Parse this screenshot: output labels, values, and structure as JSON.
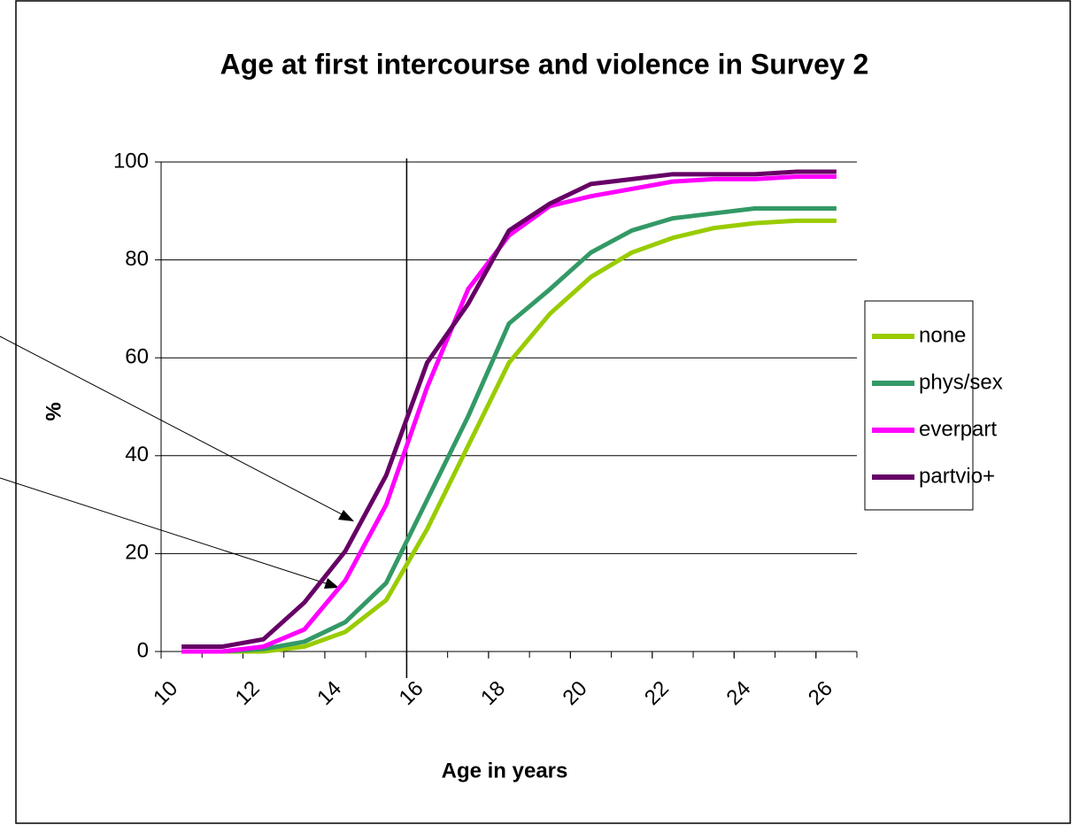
{
  "chart_data": {
    "type": "line",
    "title": "Age at first intercourse and violence in Survey 2",
    "x_label": "Age in years",
    "y_label": "%",
    "x": [
      10.5,
      11.5,
      12.5,
      13.5,
      14.5,
      15.5,
      16.5,
      17.5,
      18.5,
      19.5,
      20.5,
      21.5,
      22.5,
      23.5,
      24.5,
      25.5,
      26.5
    ],
    "series": [
      {
        "name": "none",
        "color": "#99cc00",
        "values": [
          0,
          0,
          0,
          1,
          4,
          10.5,
          25,
          42,
          59,
          69,
          76.5,
          81.5,
          84.5,
          86.5,
          87.5,
          88,
          88
        ]
      },
      {
        "name": "phys/sex",
        "color": "#339966",
        "values": [
          0,
          0,
          0.5,
          2,
          6,
          14,
          31,
          48,
          67,
          74,
          81.5,
          86,
          88.5,
          89.5,
          90.5,
          90.5,
          90.5
        ]
      },
      {
        "name": "everpart",
        "color": "#ff00ff",
        "values": [
          0,
          0,
          1,
          4.5,
          14.5,
          30,
          54,
          74,
          85,
          91,
          93,
          94.5,
          96,
          96.5,
          96.5,
          97,
          97
        ]
      },
      {
        "name": "partvio+",
        "color": "#660066",
        "values": [
          1,
          1,
          2.5,
          10,
          20.5,
          36,
          59,
          71,
          86,
          91.5,
          95.5,
          96.5,
          97.5,
          97.5,
          97.5,
          98,
          98
        ]
      }
    ],
    "xlim": [
      10,
      27
    ],
    "xticks": [
      10,
      12,
      14,
      16,
      18,
      20,
      22,
      24,
      26
    ],
    "ylim": [
      0,
      100
    ],
    "yticks": [
      0,
      20,
      40,
      60,
      80,
      100
    ],
    "vline": 16,
    "grid": true,
    "legend": "right"
  }
}
